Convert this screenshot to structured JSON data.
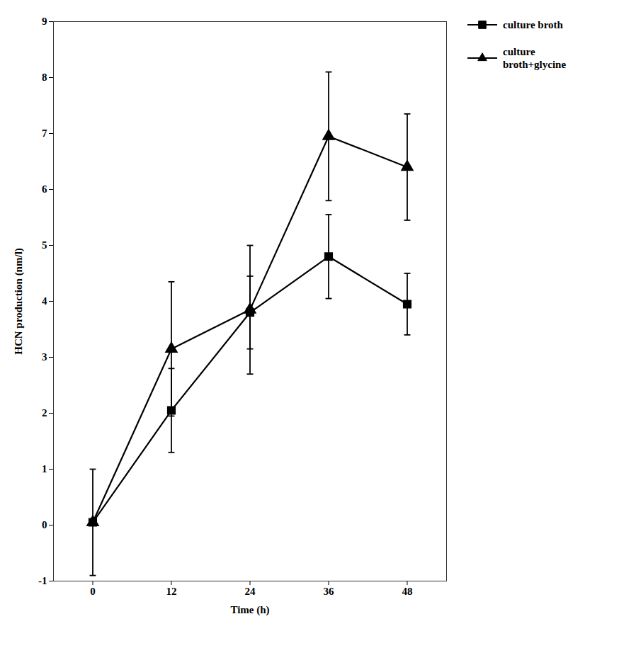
{
  "chart_data": {
    "type": "line",
    "x": [
      0,
      12,
      24,
      36,
      48
    ],
    "xlabel": "Time (h)",
    "ylabel": "HCN production (nm/l)",
    "series": [
      {
        "name": "culture broth",
        "color": "#000000",
        "marker": "square",
        "line_style": "solid",
        "values": [
          0.05,
          2.05,
          3.8,
          4.8,
          3.95
        ],
        "errors": [
          0.95,
          0.75,
          0.65,
          0.75,
          0.55
        ]
      },
      {
        "name": "culture\nbroth+glycine",
        "color": "#000000",
        "marker": "triangle",
        "line_style": "solid",
        "values": [
          0.05,
          3.15,
          3.85,
          6.95,
          6.4
        ],
        "errors": [
          0.05,
          1.2,
          1.15,
          1.15,
          0.95
        ]
      }
    ],
    "xlim": [
      -6,
      54
    ],
    "xticks": [
      0,
      12,
      24,
      36,
      48
    ],
    "ylim": [
      -1,
      9
    ],
    "yticks": [
      -1,
      0,
      1,
      2,
      3,
      4,
      5,
      6,
      7,
      8,
      9
    ],
    "grid": false,
    "legend": "right"
  }
}
